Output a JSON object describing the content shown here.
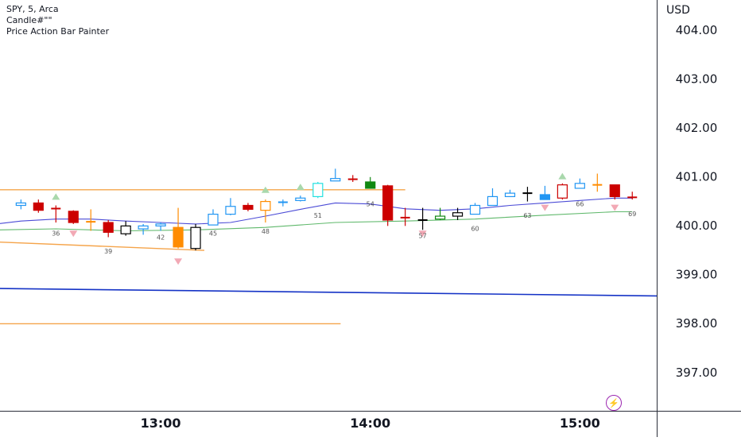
{
  "legend": {
    "symbol_line": "SPY, 5, Arca",
    "indicator_1": "Candle#\"\"",
    "indicator_2": "Price Action Bar Painter"
  },
  "price_axis": {
    "currency": "USD"
  },
  "bolt_icon": "lightning-bolt-icon",
  "colors": {
    "bull_hollow": "#2196f3",
    "bear_red": "#cc0000",
    "orange": "#ff8c00",
    "green": "#118811",
    "cyan": "#22e0e0",
    "black": "#000000",
    "level_orange": "#f5a44a",
    "support_blue": "#1533c6",
    "ma_purple": "#4b4bd6",
    "ma_green": "#5fb86b",
    "marker_up": "#a9d8ac",
    "marker_down": "#f2a9b5",
    "label_gray": "#555555",
    "accent_purple": "#9c27b0"
  },
  "chart_data": {
    "type": "candlestick",
    "title": "SPY, 5, Arca",
    "xlabel": "",
    "ylabel": "USD",
    "ylim": [
      396.2,
      404.6
    ],
    "y_ticks": [
      "404.00",
      "403.00",
      "402.00",
      "401.00",
      "400.00",
      "399.00",
      "398.00",
      "397.00"
    ],
    "x_ticks": [
      {
        "label": "13:00",
        "bar": 8
      },
      {
        "label": "14:00",
        "bar": 20
      },
      {
        "label": "15:00",
        "bar": 32
      }
    ],
    "bar_index_range": [
      -1.2,
      36.4
    ],
    "candles": [
      {
        "bar": 0,
        "o": 400.4,
        "h": 400.52,
        "l": 400.32,
        "c": 400.45,
        "style": "bull_hollow"
      },
      {
        "bar": 1,
        "o": 400.45,
        "h": 400.52,
        "l": 400.25,
        "c": 400.3,
        "style": "bear_red"
      },
      {
        "bar": 2,
        "o": 400.35,
        "h": 400.4,
        "l": 400.05,
        "c": 400.32,
        "style": "doji_red"
      },
      {
        "bar": 3,
        "o": 400.28,
        "h": 400.3,
        "l": 400.02,
        "c": 400.05,
        "style": "bear_red"
      },
      {
        "bar": 4,
        "o": 400.05,
        "h": 400.32,
        "l": 399.88,
        "c": 400.08,
        "style": "orange_hollow"
      },
      {
        "bar": 5,
        "o": 400.05,
        "h": 400.1,
        "l": 399.75,
        "c": 399.85,
        "style": "bear_red"
      },
      {
        "bar": 6,
        "o": 399.82,
        "h": 400.08,
        "l": 399.78,
        "c": 399.98,
        "style": "black_hollow"
      },
      {
        "bar": 7,
        "o": 399.92,
        "h": 400.02,
        "l": 399.8,
        "c": 399.98,
        "style": "bull_hollow"
      },
      {
        "bar": 8,
        "o": 399.98,
        "h": 400.05,
        "l": 399.88,
        "c": 400.02,
        "style": "bull_hollow"
      },
      {
        "bar": 9,
        "o": 399.95,
        "h": 400.35,
        "l": 399.52,
        "c": 399.55,
        "style": "orange_filled"
      },
      {
        "bar": 10,
        "o": 399.52,
        "h": 400.02,
        "l": 399.48,
        "c": 399.95,
        "style": "black_hollow"
      },
      {
        "bar": 11,
        "o": 400.0,
        "h": 400.32,
        "l": 400.0,
        "c": 400.22,
        "style": "bull_hollow"
      },
      {
        "bar": 12,
        "o": 400.22,
        "h": 400.55,
        "l": 400.2,
        "c": 400.38,
        "style": "bull_hollow"
      },
      {
        "bar": 13,
        "o": 400.4,
        "h": 400.45,
        "l": 400.28,
        "c": 400.32,
        "style": "bear_red"
      },
      {
        "bar": 14,
        "o": 400.3,
        "h": 400.52,
        "l": 400.05,
        "c": 400.48,
        "style": "orange_hollow"
      },
      {
        "bar": 15,
        "o": 400.45,
        "h": 400.52,
        "l": 400.38,
        "c": 400.48,
        "style": "bull_hollow"
      },
      {
        "bar": 16,
        "o": 400.5,
        "h": 400.6,
        "l": 400.48,
        "c": 400.55,
        "style": "bull_hollow"
      },
      {
        "bar": 17,
        "o": 400.58,
        "h": 400.88,
        "l": 400.55,
        "c": 400.85,
        "style": "cyan_hollow"
      },
      {
        "bar": 18,
        "o": 400.9,
        "h": 401.15,
        "l": 400.92,
        "c": 400.95,
        "style": "bull_hollow"
      },
      {
        "bar": 19,
        "o": 400.95,
        "h": 401.02,
        "l": 400.88,
        "c": 400.92,
        "style": "bear_red"
      },
      {
        "bar": 20,
        "o": 400.75,
        "h": 400.98,
        "l": 400.75,
        "c": 400.88,
        "style": "green_filled"
      },
      {
        "bar": 21,
        "o": 400.8,
        "h": 400.82,
        "l": 399.98,
        "c": 400.1,
        "style": "bear_red"
      },
      {
        "bar": 22,
        "o": 400.18,
        "h": 400.35,
        "l": 399.98,
        "c": 400.12,
        "style": "doji_red"
      },
      {
        "bar": 23,
        "o": 400.1,
        "h": 400.35,
        "l": 399.9,
        "c": 400.1,
        "style": "doji_black"
      },
      {
        "bar": 24,
        "o": 400.12,
        "h": 400.35,
        "l": 400.1,
        "c": 400.18,
        "style": "green_hollow"
      },
      {
        "bar": 25,
        "o": 400.18,
        "h": 400.35,
        "l": 400.1,
        "c": 400.25,
        "style": "black_hollow"
      },
      {
        "bar": 26,
        "o": 400.22,
        "h": 400.45,
        "l": 400.22,
        "c": 400.4,
        "style": "bull_hollow"
      },
      {
        "bar": 27,
        "o": 400.4,
        "h": 400.75,
        "l": 400.4,
        "c": 400.58,
        "style": "bull_hollow"
      },
      {
        "bar": 28,
        "o": 400.58,
        "h": 400.72,
        "l": 400.58,
        "c": 400.65,
        "style": "bull_hollow"
      },
      {
        "bar": 29,
        "o": 400.65,
        "h": 400.78,
        "l": 400.48,
        "c": 400.65,
        "style": "doji_black"
      },
      {
        "bar": 30,
        "o": 400.52,
        "h": 400.8,
        "l": 400.52,
        "c": 400.62,
        "style": "bull_filled"
      },
      {
        "bar": 31,
        "o": 400.55,
        "h": 400.85,
        "l": 400.52,
        "c": 400.82,
        "style": "red_hollow"
      },
      {
        "bar": 32,
        "o": 400.75,
        "h": 400.95,
        "l": 400.75,
        "c": 400.85,
        "style": "bull_hollow"
      },
      {
        "bar": 33,
        "o": 400.82,
        "h": 401.05,
        "l": 400.68,
        "c": 400.82,
        "style": "doji_orange"
      },
      {
        "bar": 34,
        "o": 400.82,
        "h": 400.82,
        "l": 400.52,
        "c": 400.58,
        "style": "bear_red"
      },
      {
        "bar": 35,
        "o": 400.55,
        "h": 400.68,
        "l": 400.52,
        "c": 400.58,
        "style": "red_hollow"
      }
    ],
    "bar_numbers": [
      {
        "bar": 2,
        "price": 399.78,
        "text": "36"
      },
      {
        "bar": 5,
        "price": 399.42,
        "text": "39"
      },
      {
        "bar": 8,
        "price": 399.7,
        "text": "42"
      },
      {
        "bar": 11,
        "price": 399.78,
        "text": "45"
      },
      {
        "bar": 14,
        "price": 399.82,
        "text": "48"
      },
      {
        "bar": 17,
        "price": 400.15,
        "text": "51"
      },
      {
        "bar": 20,
        "price": 400.38,
        "text": "54"
      },
      {
        "bar": 23,
        "price": 399.73,
        "text": "57"
      },
      {
        "bar": 26,
        "price": 399.88,
        "text": "60"
      },
      {
        "bar": 29,
        "price": 400.15,
        "text": "63"
      },
      {
        "bar": 32,
        "price": 400.38,
        "text": "66"
      },
      {
        "bar": 35,
        "price": 400.18,
        "text": "69"
      }
    ],
    "signal_markers": [
      {
        "bar": 2,
        "price": 400.58,
        "dir": "up"
      },
      {
        "bar": 3,
        "price": 399.82,
        "dir": "down"
      },
      {
        "bar": 9,
        "price": 399.25,
        "dir": "down"
      },
      {
        "bar": 14,
        "price": 400.72,
        "dir": "up"
      },
      {
        "bar": 16,
        "price": 400.78,
        "dir": "up"
      },
      {
        "bar": 23,
        "price": 399.82,
        "dir": "down"
      },
      {
        "bar": 30,
        "price": 400.35,
        "dir": "down"
      },
      {
        "bar": 31,
        "price": 401.0,
        "dir": "up"
      },
      {
        "bar": 34,
        "price": 400.35,
        "dir": "down"
      }
    ],
    "lines": [
      {
        "name": "",
        "style": "level_orange",
        "points": [
          [
            -1.2,
            400.72
          ],
          [
            22.0,
            400.72
          ]
        ]
      },
      {
        "name": "",
        "style": "level_orange",
        "points": [
          [
            -1.2,
            399.65
          ],
          [
            10.5,
            399.48
          ]
        ]
      },
      {
        "name": "",
        "style": "level_orange",
        "points": [
          [
            -1.2,
            397.98
          ],
          [
            18.3,
            397.98
          ]
        ]
      },
      {
        "name": "",
        "style": "support_blue",
        "points": [
          [
            -1.2,
            398.7
          ],
          [
            36.4,
            398.55
          ]
        ]
      },
      {
        "name": "",
        "style": "ma_purple",
        "points": [
          [
            -1.2,
            400.03
          ],
          [
            0,
            400.08
          ],
          [
            2,
            400.12
          ],
          [
            4,
            400.12
          ],
          [
            6,
            400.08
          ],
          [
            8,
            400.05
          ],
          [
            10,
            400.02
          ],
          [
            12,
            400.05
          ],
          [
            14,
            400.18
          ],
          [
            16,
            400.32
          ],
          [
            18,
            400.45
          ],
          [
            20,
            400.43
          ],
          [
            22,
            400.33
          ],
          [
            24,
            400.3
          ],
          [
            26,
            400.33
          ],
          [
            28,
            400.4
          ],
          [
            30,
            400.45
          ],
          [
            32,
            400.5
          ],
          [
            34,
            400.55
          ],
          [
            35,
            400.55
          ]
        ]
      },
      {
        "name": "",
        "style": "ma_green",
        "points": [
          [
            -1.2,
            399.9
          ],
          [
            2,
            399.92
          ],
          [
            6,
            399.88
          ],
          [
            10,
            399.9
          ],
          [
            14,
            399.95
          ],
          [
            18,
            400.05
          ],
          [
            22,
            400.08
          ],
          [
            26,
            400.12
          ],
          [
            30,
            400.2
          ],
          [
            34,
            400.27
          ],
          [
            35,
            400.27
          ]
        ]
      }
    ],
    "grid": false,
    "legend_position": "top-left"
  }
}
